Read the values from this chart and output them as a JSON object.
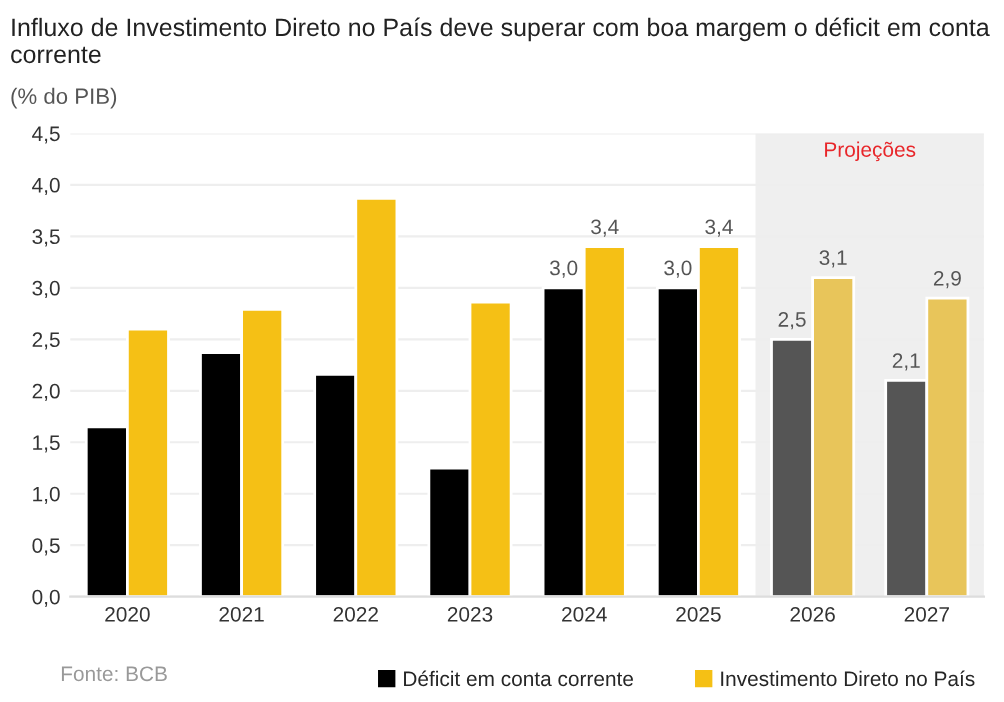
{
  "chart_data": {
    "type": "bar",
    "title": "Influxo de Investimento Direto no País deve superar com boa margem o déficit em conta corrente",
    "subtitle": "(% do PIB)",
    "categories": [
      "2020",
      "2021",
      "2022",
      "2023",
      "2024",
      "2025",
      "2026",
      "2027"
    ],
    "series": [
      {
        "name": "Déficit em conta corrente",
        "color": "#000000",
        "colors": [
          "#000000",
          "#000000",
          "#000000",
          "#000000",
          "#000000",
          "#000000",
          "#555555",
          "#555555"
        ],
        "values": [
          1.65,
          2.37,
          2.16,
          1.25,
          3.0,
          3.0,
          2.5,
          2.1
        ],
        "value_labels": [
          null,
          null,
          null,
          null,
          "3,0",
          "3,0",
          "2,5",
          "2,1"
        ]
      },
      {
        "name": "Investimento Direto no País",
        "color": "#f5c015",
        "colors": [
          "#f5c015",
          "#f5c015",
          "#f5c015",
          "#f5c015",
          "#f5c015",
          "#f5c015",
          "#e8c55a",
          "#e8c55a"
        ],
        "values": [
          2.6,
          2.79,
          3.87,
          2.86,
          3.4,
          3.4,
          3.1,
          2.9
        ],
        "value_labels": [
          null,
          null,
          null,
          null,
          "3,4",
          "3,4",
          "3,1",
          "2,9"
        ]
      }
    ],
    "ylim": [
      0,
      4.5
    ],
    "yticks": [
      {
        "value": 0,
        "label": "0,0"
      },
      {
        "value": 0.5,
        "label": "0,5"
      },
      {
        "value": 1,
        "label": "1,0"
      },
      {
        "value": 1.5,
        "label": "1,5"
      },
      {
        "value": 2,
        "label": "2,0"
      },
      {
        "value": 2.5,
        "label": "2,5"
      },
      {
        "value": 3,
        "label": "3,0"
      },
      {
        "value": 3.5,
        "label": "3,5"
      },
      {
        "value": 4,
        "label": "4,0"
      },
      {
        "value": 4.5,
        "label": "4,5"
      }
    ],
    "bands": [
      {
        "axis": "x",
        "from": "2026",
        "to": "2027",
        "label": "Projeções",
        "color": "#efefef"
      }
    ],
    "grid": "y",
    "legend": "bottom",
    "annotations": [
      "Fonte: BCB"
    ]
  }
}
